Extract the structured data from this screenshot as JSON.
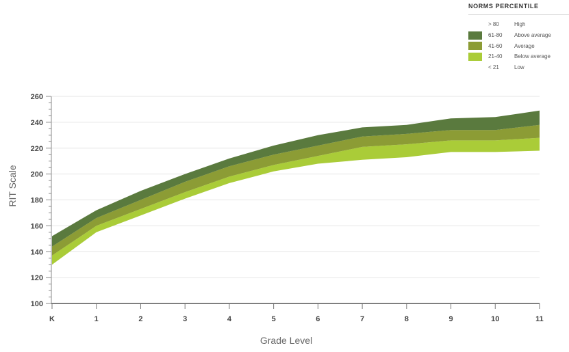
{
  "legend": {
    "title": "NORMS PERCENTILE",
    "items": [
      {
        "range": "> 80",
        "label": "High",
        "color": ""
      },
      {
        "range": "61-80",
        "label": "Above average",
        "color": "#5a7a3e"
      },
      {
        "range": "41-60",
        "label": "Average",
        "color": "#8c9c35"
      },
      {
        "range": "21-40",
        "label": "Below average",
        "color": "#aacc38"
      },
      {
        "range": "< 21",
        "label": "Low",
        "color": ""
      }
    ]
  },
  "chart_data": {
    "type": "area",
    "xlabel": "Grade Level",
    "ylabel": "RIT Scale",
    "categories": [
      "K",
      "1",
      "2",
      "3",
      "4",
      "5",
      "6",
      "7",
      "8",
      "9",
      "10",
      "11"
    ],
    "ylim": [
      100,
      260
    ],
    "yticks": [
      100,
      120,
      140,
      160,
      180,
      200,
      220,
      240,
      260
    ],
    "grid": true,
    "legend_position": "top-right",
    "boundaries": {
      "p21": [
        130,
        155,
        168,
        181,
        193,
        202,
        208,
        211,
        213,
        217,
        217,
        218
      ],
      "p41": [
        137,
        160,
        173,
        186,
        198,
        207,
        214,
        221,
        223,
        226,
        226,
        228
      ],
      "p61": [
        144,
        166,
        180,
        194,
        206,
        215,
        222,
        229,
        231,
        234,
        234,
        238
      ],
      "p81": [
        152,
        172,
        187,
        200,
        212,
        222,
        230,
        236,
        238,
        243,
        244,
        249
      ]
    },
    "series": [
      {
        "name": "Below average",
        "range": "21-40",
        "lower": "p21",
        "upper": "p41",
        "color": "#aacc38"
      },
      {
        "name": "Average",
        "range": "41-60",
        "lower": "p41",
        "upper": "p61",
        "color": "#8c9c35"
      },
      {
        "name": "Above average",
        "range": "61-80",
        "lower": "p61",
        "upper": "p81",
        "color": "#5a7a3e"
      }
    ]
  }
}
